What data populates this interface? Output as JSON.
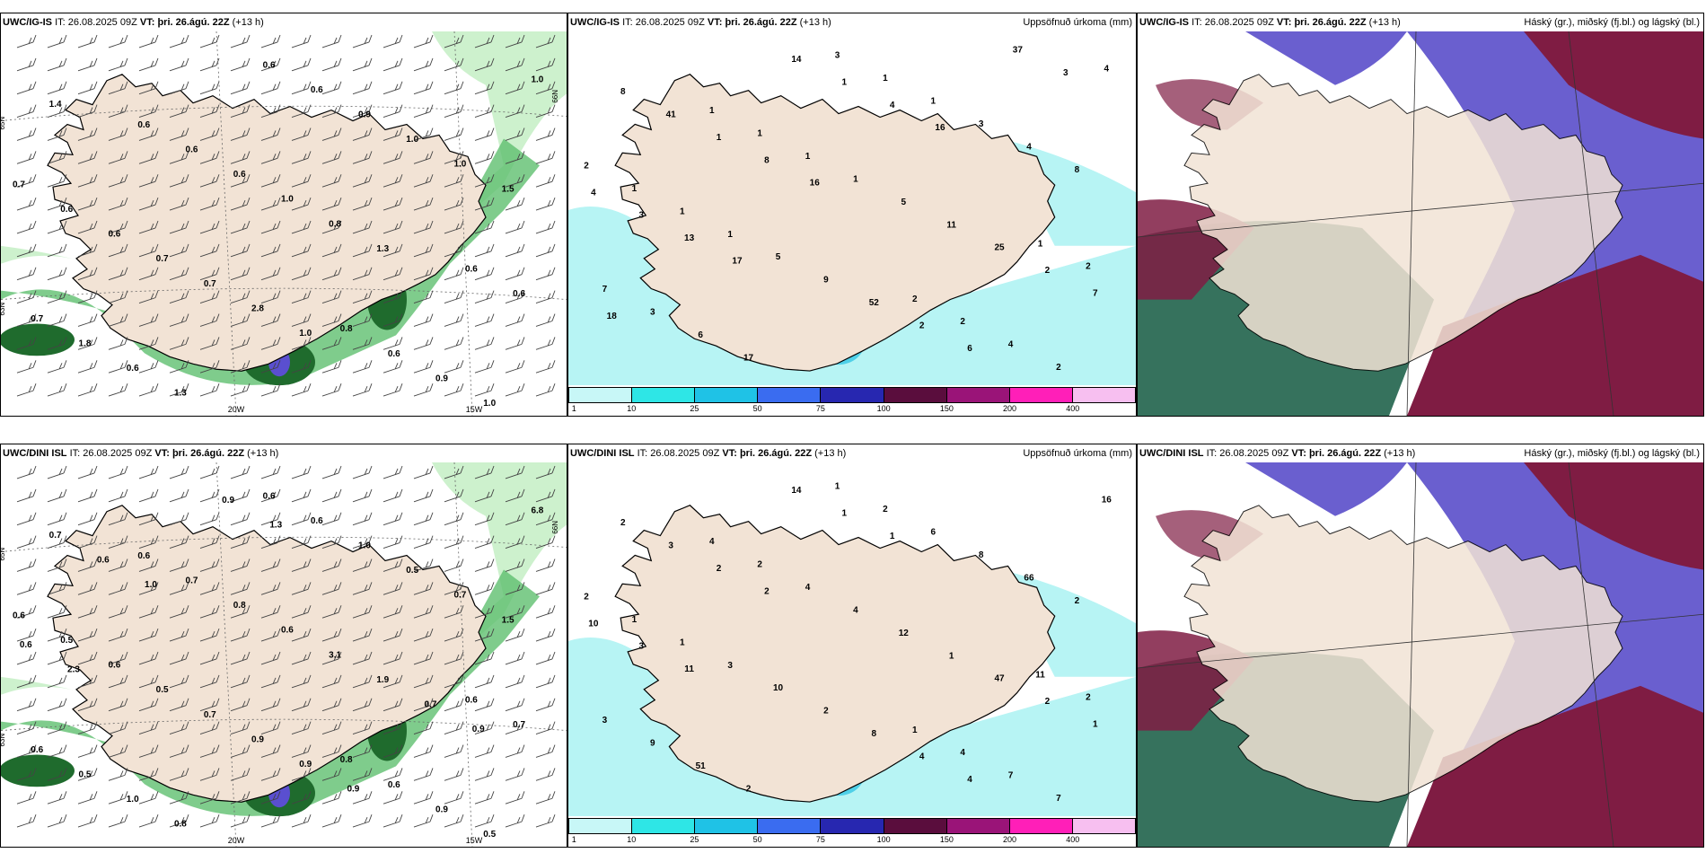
{
  "colors": {
    "land": "#f2e3d5",
    "sea": "#ffffff",
    "precip_light": "#c8f0c8",
    "precip_mid": "#5fbf6f",
    "precip_dark": "#1f6b2d",
    "accum_light": "#b7f4f4",
    "accum_mid": "#4fd0e8",
    "accum_dark": "#2f6bd8",
    "cloud_high": "#7f1c43",
    "cloud_mid": "#6a5fcf",
    "cloud_low": "#2b6a54"
  },
  "panels": [
    {
      "model": "UWC/IG-IS",
      "it_label": "IT:",
      "it_value": "26.08.2025 09Z",
      "vt_label": "VT:",
      "vt_value": "þri. 26.ágú. 22Z",
      "lead": "(+13 h)",
      "title": "",
      "kind": "wind",
      "lon_labels": [
        "20W",
        "15W"
      ],
      "lat_labels": [
        "65N",
        "66N",
        "63N"
      ],
      "values": [
        "0.7",
        "0.8",
        "0.6",
        "0.6",
        "0.6",
        "0.6",
        "0.6",
        "0.6",
        "0.6",
        "0.6",
        "0.6",
        "0.9",
        "0.6",
        "0.7",
        "0.9",
        "0.7",
        "1.0",
        "1.0",
        "1.8",
        "1.0",
        "0.7",
        "1.0",
        "0.8",
        "0.6",
        "1.0",
        "2.8",
        "1.4",
        "1.3",
        "1.3",
        "1.5",
        "1.0"
      ]
    },
    {
      "model": "UWC/IG-IS",
      "it_label": "IT:",
      "it_value": "26.08.2025 09Z",
      "vt_label": "VT:",
      "vt_value": "þri. 26.ágú. 22Z",
      "lead": "(+13 h)",
      "title": "Uppsöfnuð úrkoma (mm)",
      "kind": "accum",
      "values": [
        "2",
        "2",
        "1",
        "1",
        "3",
        "1",
        "2",
        "1",
        "2",
        "1",
        "1",
        "4",
        "1",
        "7",
        "1",
        "1",
        "2",
        "1",
        "3",
        "3",
        "5",
        "4",
        "5",
        "6",
        "4",
        "9",
        "8",
        "11",
        "17",
        "8",
        "52",
        "41",
        "25",
        "14",
        "4",
        "2",
        "1",
        "2",
        "1",
        "3",
        "6",
        "8",
        "7",
        "4",
        "13",
        "37",
        "16",
        "18",
        "16",
        "17",
        "3"
      ],
      "colorbar": [
        "1",
        "10",
        "25",
        "50",
        "75",
        "100",
        "150",
        "200",
        "400"
      ]
    },
    {
      "model": "UWC/IG-IS",
      "it_label": "IT:",
      "it_value": "26.08.2025 09Z",
      "vt_label": "VT:",
      "vt_value": "þri. 26.ágú. 22Z",
      "lead": "(+13 h)",
      "title": "Háský (gr.), miðský (fj.bl.) og lágský (bl.)",
      "kind": "cloud"
    },
    {
      "model": "UWC/DINI ISL",
      "it_label": "IT:",
      "it_value": "26.08.2025 09Z",
      "vt_label": "VT:",
      "vt_value": "þri. 26.ágú. 22Z",
      "lead": "(+13 h)",
      "title": "",
      "kind": "wind",
      "lon_labels": [
        "20W",
        "15W"
      ],
      "lat_labels": [
        "65N",
        "66N",
        "63N"
      ],
      "values": [
        "0.6",
        "0.8",
        "0.6",
        "0.6",
        "0.6",
        "0.5",
        "0.6",
        "0.7",
        "0.7",
        "0.6",
        "0.6",
        "0.9",
        "0.8",
        "0.6",
        "1.0",
        "0.5",
        "0.5",
        "0.6",
        "0.5",
        "0.5",
        "0.7",
        "6.8",
        "3.1",
        "1.0",
        "0.7",
        "0.9",
        "0.7",
        "1.9",
        "0.8",
        "1.5",
        "0.9",
        "0.6",
        "0.7",
        "0.9",
        "0.6",
        "0.9",
        "1.0",
        "0.9",
        "1.3",
        "2.3"
      ]
    },
    {
      "model": "UWC/DINI ISL",
      "it_label": "IT:",
      "it_value": "26.08.2025 09Z",
      "vt_label": "VT:",
      "vt_value": "þri. 26.ágú. 22Z",
      "lead": "(+13 h)",
      "title": "Uppsöfnuð úrkoma (mm)",
      "kind": "accum",
      "values": [
        "2",
        "1",
        "4",
        "11",
        "1",
        "1",
        "4",
        "2",
        "2",
        "2",
        "1",
        "7",
        "4",
        "3",
        "6",
        "3",
        "7",
        "4",
        "9",
        "8",
        "10",
        "16",
        "12",
        "51",
        "66",
        "2",
        "2",
        "1",
        "2",
        "2",
        "8",
        "3",
        "47",
        "14",
        "10",
        "4",
        "2",
        "2",
        "1",
        "3",
        "4",
        "2",
        "1",
        "1",
        "11"
      ],
      "colorbar": [
        "1",
        "10",
        "25",
        "50",
        "75",
        "100",
        "150",
        "200",
        "400"
      ]
    },
    {
      "model": "UWC/DINI ISL",
      "it_label": "IT:",
      "it_value": "26.08.2025 09Z",
      "vt_label": "VT:",
      "vt_value": "þri. 26.ágú. 22Z",
      "lead": "(+13 h)",
      "title": "Háský (gr.), miðský (fj.bl.) og lágský (bl.)",
      "kind": "cloud"
    }
  ]
}
